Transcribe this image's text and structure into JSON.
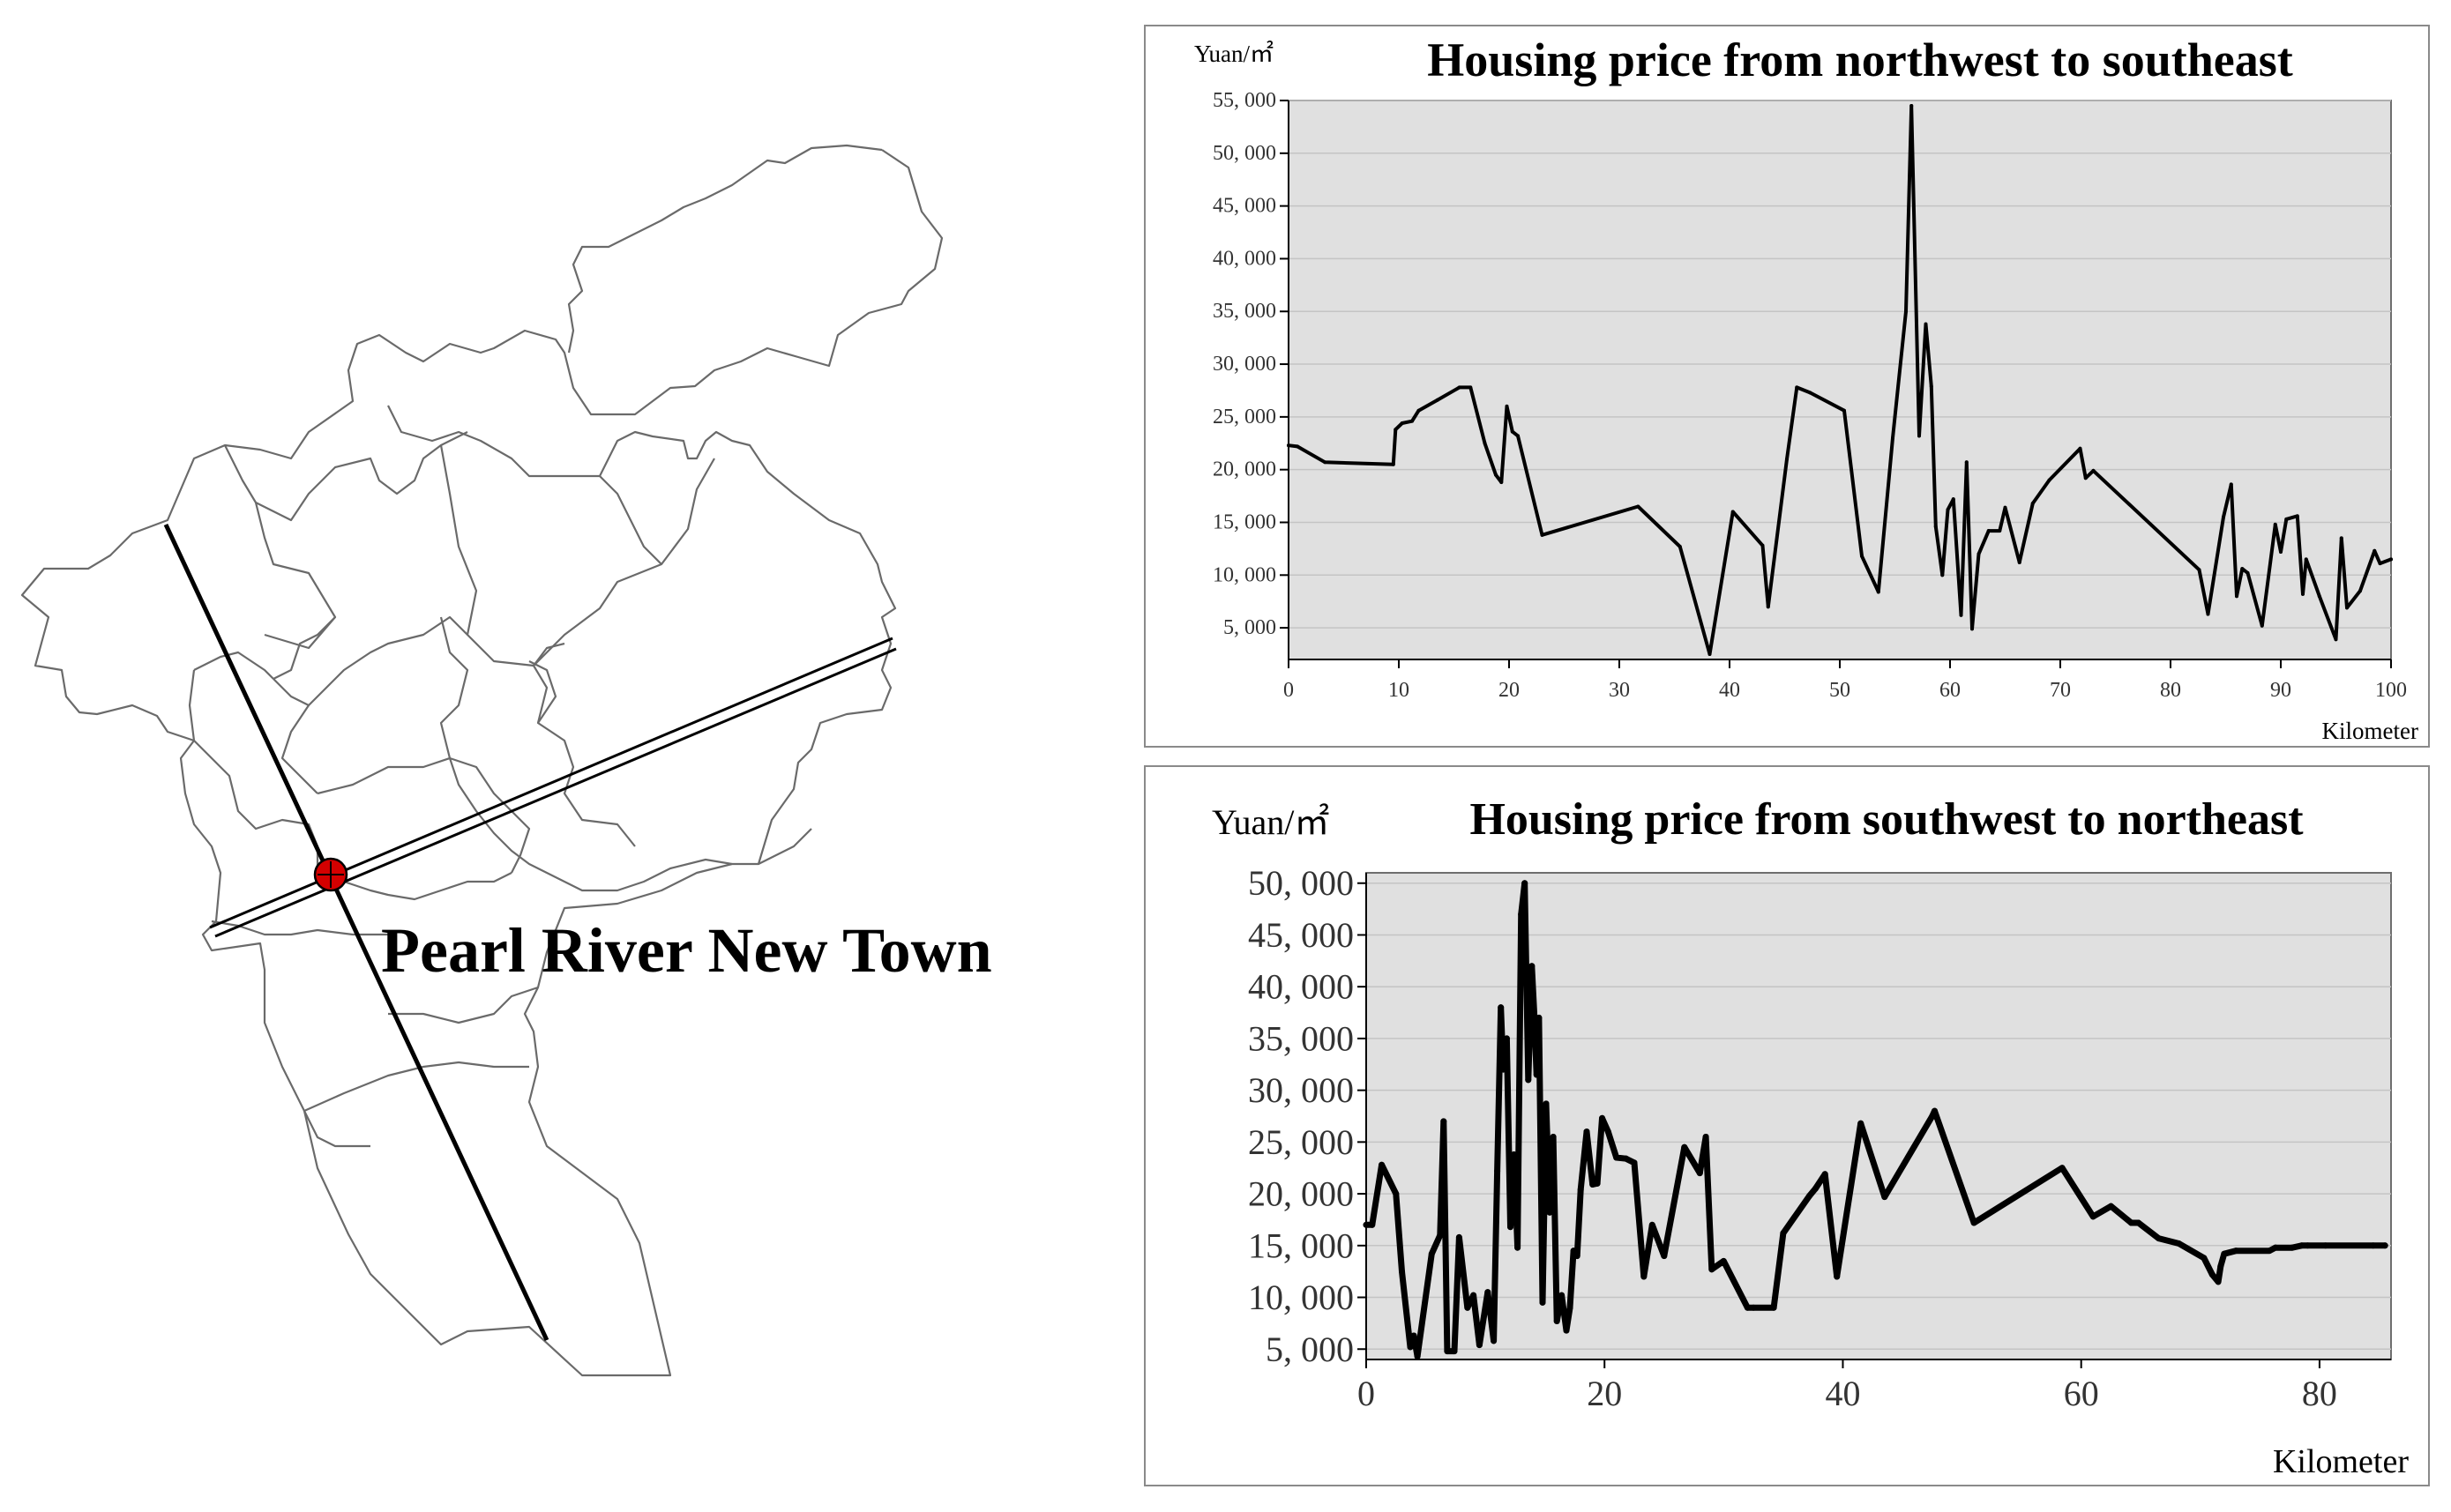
{
  "map": {
    "label": "Pearl River New Town",
    "marker_color": "#d40000"
  },
  "chart_data": [
    {
      "type": "line",
      "title": "Housing price from northwest to southeast",
      "ylabel": "Yuan/㎡",
      "xlabel": "Kilometer",
      "xlim": [
        0,
        100
      ],
      "ylim": [
        2000,
        55000
      ],
      "xticks": [
        0,
        10,
        20,
        30,
        40,
        50,
        60,
        70,
        80,
        90,
        100
      ],
      "yticks": [
        5000,
        10000,
        15000,
        20000,
        25000,
        30000,
        35000,
        40000,
        45000,
        50000,
        55000
      ],
      "ytick_labels": [
        "5, 000",
        "10, 000",
        "15, 000",
        "20, 000",
        "25, 000",
        "30, 000",
        "35, 000",
        "40, 000",
        "45, 000",
        "50, 000",
        "55, 000"
      ],
      "grid": true,
      "line_color": "#000000",
      "plot_bg": "#e0e0e0",
      "x": [
        0,
        0.8,
        3.3,
        9.5,
        9.7,
        10.3,
        11.2,
        11.8,
        13.5,
        15.5,
        16.5,
        17.8,
        18.8,
        19.3,
        19.8,
        20.3,
        20.8,
        23,
        31.7,
        35.5,
        38.2,
        40.3,
        43,
        43.5,
        45.2,
        46.1,
        47.3,
        50.4,
        52,
        53.5,
        54.8,
        56,
        56.5,
        57.2,
        57.8,
        58.3,
        58.7,
        59.3,
        59.8,
        60.3,
        61,
        61.5,
        62,
        62.6,
        63.5,
        64.5,
        65,
        66.3,
        67.5,
        69,
        71.8,
        72.3,
        73,
        82.6,
        83.4,
        84.8,
        85.5,
        86,
        86.5,
        87,
        88.3,
        89.5,
        90,
        90.5,
        91.5,
        92,
        92.3,
        93.5,
        95,
        95.5,
        96,
        97.2,
        98.5,
        99,
        100
      ],
      "y": [
        22300,
        22200,
        20700,
        20500,
        23800,
        24400,
        24600,
        25600,
        26600,
        27800,
        27800,
        22500,
        19500,
        18800,
        26000,
        23600,
        23200,
        13800,
        16500,
        12700,
        2500,
        16000,
        12800,
        7000,
        21000,
        27800,
        27300,
        25600,
        11800,
        8400,
        23000,
        35000,
        54500,
        23200,
        33800,
        27900,
        14600,
        10000,
        16200,
        17200,
        6200,
        20700,
        4900,
        12000,
        14200,
        14200,
        16400,
        11200,
        16800,
        19000,
        22000,
        19200,
        19900,
        10500,
        6300,
        15500,
        18600,
        8000,
        10600,
        10200,
        5200,
        14800,
        12200,
        15300,
        15600,
        8200,
        11500,
        8000,
        3900,
        13500,
        6900,
        8500,
        12300,
        11100,
        11500
      ]
    },
    {
      "type": "line",
      "title": "Housing price from southwest to northeast",
      "ylabel": "Yuan/㎡",
      "xlabel": "Kilometer",
      "xlim": [
        0,
        86
      ],
      "ylim": [
        4000,
        51000
      ],
      "xticks": [
        0,
        20,
        40,
        60,
        80
      ],
      "yticks": [
        5000,
        10000,
        15000,
        20000,
        25000,
        30000,
        35000,
        40000,
        45000,
        50000
      ],
      "ytick_labels": [
        "5, 000",
        "10, 000",
        "15, 000",
        "20, 000",
        "25, 000",
        "30, 000",
        "35, 000",
        "40, 000",
        "45, 000",
        "50, 000"
      ],
      "grid": true,
      "line_color": "#000000",
      "plot_bg": "#e0e0e0",
      "x": [
        0,
        0.5,
        1.3,
        2.5,
        3,
        3.7,
        4,
        4.3,
        5.5,
        6.2,
        6.5,
        6.8,
        7.4,
        7.8,
        8.5,
        9,
        9.5,
        10.2,
        10.7,
        11,
        11.3,
        11.5,
        11.8,
        12.1,
        12.4,
        12.7,
        13,
        13.3,
        13.6,
        13.9,
        14.1,
        14.3,
        14.5,
        14.8,
        15.1,
        15.4,
        15.7,
        16,
        16.4,
        16.8,
        17.1,
        17.4,
        17.7,
        18,
        18.5,
        19,
        19.4,
        19.8,
        20.3,
        21,
        21.8,
        22.5,
        23.3,
        24,
        25,
        26.7,
        28,
        28.5,
        29,
        30,
        32,
        32.5,
        34.2,
        35,
        37.2,
        37.7,
        38.5,
        39.5,
        41.5,
        43.5,
        47.5,
        47.7,
        51,
        58.4,
        61,
        62.5,
        64.2,
        64.8,
        66.5,
        68.2,
        70.3,
        71,
        71.5,
        71.7,
        72,
        73,
        75.8,
        76.3,
        77.7,
        78.5,
        79,
        80.5,
        84.5,
        85.5
      ],
      "y": [
        17000,
        17000,
        22800,
        20000,
        12500,
        5200,
        6300,
        4300,
        14200,
        16000,
        27000,
        4800,
        4800,
        15800,
        9000,
        10200,
        5400,
        10500,
        5800,
        22200,
        38000,
        32000,
        35000,
        16800,
        23800,
        14800,
        47000,
        50000,
        31000,
        42000,
        37500,
        31500,
        37000,
        9500,
        28700,
        18200,
        25500,
        7700,
        10200,
        6800,
        9000,
        14500,
        14000,
        20400,
        26000,
        20900,
        21000,
        27300,
        26000,
        23500,
        23400,
        23000,
        12000,
        17000,
        14000,
        24500,
        22000,
        25500,
        12700,
        13500,
        9000,
        9000,
        9000,
        16200,
        19800,
        20500,
        21900,
        12000,
        26800,
        19700,
        27500,
        28000,
        17200,
        22500,
        17800,
        18800,
        17200,
        17200,
        15700,
        15200,
        13800,
        12200,
        11500,
        13000,
        14200,
        14500,
        14500,
        14800,
        14800,
        15000,
        15000,
        15000,
        15000,
        15000
      ]
    }
  ]
}
